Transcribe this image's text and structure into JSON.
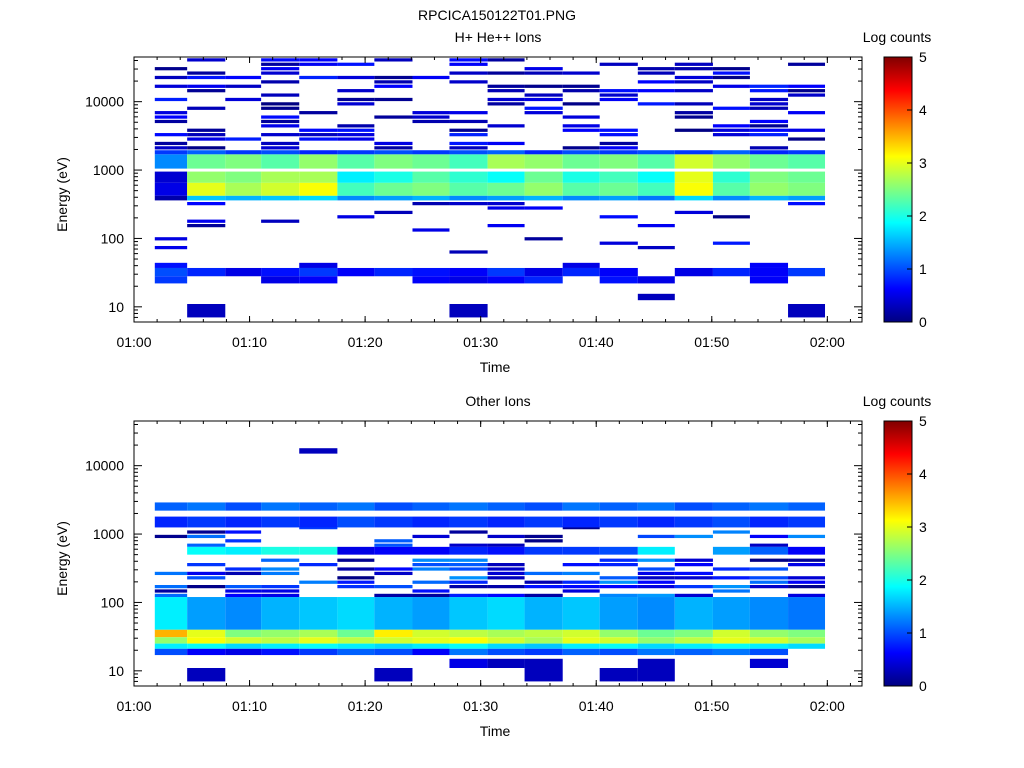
{
  "figure": {
    "title": "RPCICA150122T01.PNG"
  },
  "colorscale": [
    "#000080",
    "#0000ff",
    "#0080ff",
    "#00ffff",
    "#80ff80",
    "#ffff00",
    "#ff8000",
    "#ff0000",
    "#800000"
  ],
  "chart_data": [
    {
      "type": "heatmap",
      "title": "H+ He++ Ions",
      "xlabel": "Time",
      "ylabel": "Energy (eV)",
      "xlim": [
        "01:00",
        "02:03"
      ],
      "ylim": [
        6,
        45000
      ],
      "yscale": "log",
      "xticks": [
        "01:00",
        "01:10",
        "01:20",
        "01:30",
        "01:40",
        "01:50",
        "02:00"
      ],
      "yticks": [
        10,
        100,
        1000,
        10000
      ],
      "yticklabels": [
        "10",
        "100",
        "1000",
        "10000"
      ],
      "colorbar": {
        "label": "Log counts",
        "range": [
          0,
          5
        ],
        "ticks": [
          "0",
          "1",
          "2",
          "3",
          "4",
          "5"
        ]
      },
      "time_bins_min": [
        1.8,
        4.6,
        7.9,
        11.0,
        14.3,
        17.6,
        20.8,
        24.1,
        27.3,
        30.6,
        33.8,
        37.1,
        40.3,
        43.6,
        46.8,
        50.1,
        53.3,
        56.6,
        59.8
      ],
      "fixed_bands": [
        {
          "e": [
            1050,
            1700
          ],
          "v": [
            1.3,
            2.4,
            2.5,
            2.3,
            2.6,
            2.3,
            2.5,
            2.4,
            2.2,
            2.7,
            2.6,
            2.4,
            2.5,
            2.3,
            2.9,
            2.6,
            2.4,
            2.3
          ]
        },
        {
          "e": [
            1700,
            1950
          ],
          "v": [
            0.9,
            1.1,
            0.9,
            1.0,
            0.8,
            0.9,
            1.0,
            0.9,
            1.0,
            1.1,
            0.8,
            1.0,
            0.9,
            1.0,
            0.9,
            1.1,
            0.8,
            0.9
          ]
        },
        {
          "e": [
            650,
            950
          ],
          "v": [
            0.4,
            2.6,
            2.5,
            2.7,
            2.7,
            1.8,
            2.0,
            2.3,
            2.1,
            1.9,
            2.4,
            2.0,
            2.2,
            1.9,
            3.0,
            2.1,
            2.5,
            2.4
          ]
        },
        {
          "e": [
            420,
            650
          ],
          "v": [
            0.5,
            3.0,
            2.7,
            2.9,
            3.1,
            2.2,
            2.4,
            2.5,
            2.3,
            2.4,
            2.6,
            2.3,
            2.4,
            2.2,
            3.1,
            2.3,
            2.6,
            2.5
          ]
        },
        {
          "e": [
            360,
            420
          ],
          "v": [
            0.2,
            1.6,
            1.5,
            1.6,
            1.7,
            1.3,
            1.4,
            1.5,
            1.3,
            1.4,
            1.5,
            1.3,
            1.4,
            1.2,
            1.7,
            1.3,
            1.5,
            1.4
          ]
        },
        {
          "e": [
            28,
            37
          ],
          "v": [
            1.0,
            0.8,
            0.5,
            0.7,
            0.9,
            0.6,
            0.8,
            0.7,
            0.6,
            0.9,
            0.5,
            0.8,
            0.6,
            0.0,
            0.5,
            0.8,
            0.6,
            0.9
          ]
        },
        {
          "e": [
            22,
            28
          ],
          "v": [
            0.9,
            0.0,
            0.0,
            0.5,
            0.6,
            0.0,
            0.0,
            0.6,
            0.5,
            0.6,
            0.8,
            0.0,
            0.7,
            0.5,
            0.0,
            0.0,
            0.6,
            0.0
          ]
        },
        {
          "e": [
            37,
            44
          ],
          "v": [
            0.7,
            0.0,
            0.0,
            0.0,
            0.5,
            0.0,
            0.0,
            0.0,
            0.0,
            0.0,
            0.0,
            0.5,
            0.0,
            0.0,
            0.0,
            0.0,
            0.6,
            0.0
          ]
        },
        {
          "e": [
            7,
            11
          ],
          "v": [
            0.0,
            0.3,
            0.0,
            0.0,
            0.0,
            0.0,
            0.0,
            0.0,
            0.3,
            0.0,
            0.0,
            0.0,
            0.0,
            0.0,
            0.0,
            0.0,
            0.0,
            0.3
          ]
        },
        {
          "e": [
            12.5,
            15.5
          ],
          "v": [
            0.0,
            0.0,
            0.0,
            0.0,
            0.0,
            0.0,
            0.0,
            0.0,
            0.0,
            0.0,
            0.0,
            0.0,
            0.0,
            0.3,
            0.0,
            0.0,
            0.0,
            0.0
          ]
        }
      ],
      "scatter": {
        "seed": 11,
        "emin": 2000,
        "emax": 42000,
        "p": 0.42,
        "vmax": 0.8,
        "emin2": 60,
        "emax2": 350,
        "p2": 0.12
      }
    },
    {
      "type": "heatmap",
      "title": "Other Ions",
      "xlabel": "Time",
      "ylabel": "Energy (eV)",
      "xlim": [
        "01:00",
        "02:03"
      ],
      "ylim": [
        6,
        45000
      ],
      "yscale": "log",
      "xticks": [
        "01:00",
        "01:10",
        "01:20",
        "01:30",
        "01:40",
        "01:50",
        "02:00"
      ],
      "yticks": [
        10,
        100,
        1000,
        10000
      ],
      "yticklabels": [
        "10",
        "100",
        "1000",
        "10000"
      ],
      "colorbar": {
        "label": "Log counts",
        "range": [
          0,
          5
        ],
        "ticks": [
          "0",
          "1",
          "2",
          "3",
          "4",
          "5"
        ]
      },
      "time_bins_min": [
        1.8,
        4.6,
        7.9,
        11.0,
        14.3,
        17.6,
        20.8,
        24.1,
        27.3,
        30.6,
        33.8,
        37.1,
        40.3,
        43.6,
        46.8,
        50.1,
        53.3,
        56.6,
        59.8
      ],
      "fixed_bands": [
        {
          "e": [
            31,
            40
          ],
          "v": [
            3.5,
            3.0,
            2.5,
            2.6,
            2.7,
            2.4,
            3.2,
            2.9,
            2.8,
            2.7,
            2.8,
            2.9,
            2.6,
            2.4,
            2.5,
            2.9,
            2.6,
            2.5
          ]
        },
        {
          "e": [
            25,
            31
          ],
          "v": [
            2.6,
            3.1,
            2.9,
            2.8,
            3.0,
            2.8,
            2.9,
            3.0,
            3.1,
            2.9,
            2.7,
            3.0,
            2.9,
            2.6,
            2.8,
            3.0,
            2.9,
            2.7
          ]
        },
        {
          "e": [
            21,
            25
          ],
          "v": [
            1.8,
            1.9,
            1.7,
            1.8,
            1.9,
            1.8,
            1.7,
            1.8,
            1.9,
            1.7,
            1.6,
            1.8,
            1.9,
            1.7,
            1.8,
            1.9,
            1.8,
            1.7
          ]
        },
        {
          "e": [
            17,
            21
          ],
          "v": [
            1.0,
            0.6,
            0.5,
            0.7,
            0.9,
            1.1,
            1.0,
            0.6,
            1.2,
            1.0,
            0.9,
            1.1,
            1.0,
            1.2,
            1.1,
            1.2,
            1.0,
            0.0
          ]
        },
        {
          "e": [
            40,
            120
          ],
          "v": [
            1.8,
            1.4,
            1.3,
            1.5,
            1.6,
            1.7,
            1.5,
            1.4,
            1.6,
            1.7,
            1.5,
            1.6,
            1.4,
            1.3,
            1.5,
            1.4,
            1.3,
            1.2
          ]
        },
        {
          "e": [
            500,
            650
          ],
          "v": [
            0.0,
            1.9,
            1.8,
            2.0,
            2.0,
            0.5,
            0.6,
            0.6,
            0.8,
            0.7,
            0.9,
            0.9,
            1.0,
            1.8,
            0.0,
            1.4,
            1.1,
            0.6
          ]
        },
        {
          "e": [
            2200,
            2900
          ],
          "v": [
            1.1,
            1.2,
            1.0,
            1.2,
            1.1,
            1.2,
            1.0,
            1.1,
            1.2,
            1.1,
            1.0,
            1.2,
            1.1,
            1.2,
            1.0,
            1.1,
            1.2,
            1.1
          ]
        },
        {
          "e": [
            1250,
            1800
          ],
          "v": [
            0.8,
            0.9,
            0.8,
            0.9,
            0.8,
            1.0,
            0.9,
            0.8,
            0.9,
            0.8,
            0.9,
            0.8,
            0.9,
            0.8,
            0.9,
            1.0,
            0.8,
            0.9
          ]
        },
        {
          "e": [
            7,
            11
          ],
          "v": [
            0.0,
            0.3,
            0.0,
            0.0,
            0.0,
            0.0,
            0.3,
            0.0,
            0.0,
            0.0,
            0.3,
            0.0,
            0.3,
            0.3,
            0.0,
            0.0,
            0.0,
            0.0
          ]
        },
        {
          "e": [
            11,
            15
          ],
          "v": [
            0.0,
            0.0,
            0.0,
            0.0,
            0.0,
            0.0,
            0.0,
            0.0,
            0.5,
            0.3,
            0.3,
            0.0,
            0.0,
            0.3,
            0.0,
            0.0,
            0.4,
            0.0
          ]
        },
        {
          "e": [
            15000,
            18000
          ],
          "v": [
            0.0,
            0.0,
            0.0,
            0.0,
            0.3,
            0.0,
            0.0,
            0.0,
            0.0,
            0.0,
            0.0,
            0.0,
            0.0,
            0.0,
            0.0,
            0.0,
            0.0,
            0.0
          ]
        }
      ],
      "scatter": {
        "seed": 29,
        "emin": 120,
        "emax": 420,
        "p": 0.55,
        "vmax": 1.4,
        "emin2": 650,
        "emax2": 1200,
        "p2": 0.25
      }
    }
  ]
}
